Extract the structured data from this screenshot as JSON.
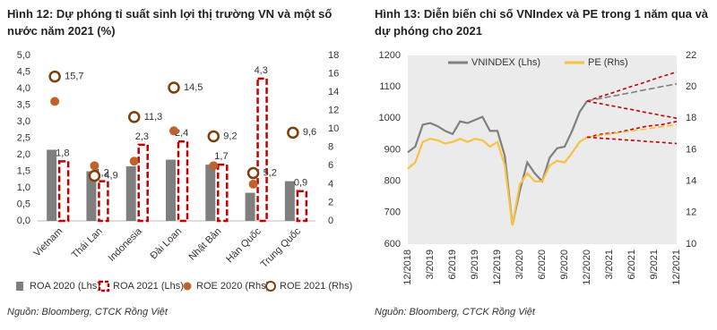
{
  "chart_data": [
    {
      "type": "combo",
      "title": "Hình 12: Dự phóng tỉ suất sinh lợi thị trường VN và một số nước năm 2021 (%)",
      "source": "Nguồn: Bloomberg, CTCK Rồng Việt",
      "categories": [
        "Vietnam",
        "Thái Lan",
        "Indonesia",
        "Đài Loan",
        "Nhật Bản",
        "Hàn Quốc",
        "Trung Quốc"
      ],
      "ylim": [
        0,
        5
      ],
      "y2lim": [
        0,
        18
      ],
      "yticks": [
        {
          "value": 0,
          "label": "0,0"
        },
        {
          "value": 0.5,
          "label": "0,5"
        },
        {
          "value": 1,
          "label": "1,0"
        },
        {
          "value": 1.5,
          "label": "1,5"
        },
        {
          "value": 2,
          "label": "2,0"
        },
        {
          "value": 2.5,
          "label": "2,5"
        },
        {
          "value": 3,
          "label": "3,0"
        },
        {
          "value": 3.5,
          "label": "3,5"
        },
        {
          "value": 4,
          "label": "4,0"
        },
        {
          "value": 4.5,
          "label": "4,5"
        },
        {
          "value": 5,
          "label": "5,0"
        }
      ],
      "y2ticks": [
        0,
        2,
        4,
        6,
        8,
        10,
        12,
        14,
        16,
        18
      ],
      "series": [
        {
          "name": "ROA 2020 (Lhs)",
          "kind": "bar",
          "color": "#7f7f7f",
          "values": [
            2.15,
            1.5,
            1.65,
            1.85,
            1.7,
            0.85,
            1.2
          ]
        },
        {
          "name": "ROA 2021 (Lhs)",
          "kind": "bar-dashed",
          "color": "#c00000",
          "values": [
            1.8,
            1.2,
            2.3,
            2.4,
            1.7,
            4.3,
            0.9
          ],
          "value_labels": [
            "1,8",
            "1,2",
            "2,3",
            "2,4",
            "1,7",
            "4,3",
            "0,9"
          ]
        },
        {
          "name": "ROE 2020 (Rhs)",
          "kind": "dot",
          "axis": "y2",
          "color": "#c0622b",
          "values": [
            13,
            6,
            6.5,
            9.8,
            6,
            4,
            9.5
          ]
        },
        {
          "name": "ROE 2021 (Rhs)",
          "kind": "ring",
          "axis": "y2",
          "color": "#7b3f0a",
          "values": [
            15.7,
            4.9,
            11.3,
            14.5,
            9.2,
            5.2,
            9.6
          ],
          "value_labels": [
            "15,7",
            "4,9",
            "11,3",
            "14,5",
            "9,2",
            "5,2",
            "9,6"
          ]
        }
      ]
    },
    {
      "type": "line",
      "title": "Hình 13: Diễn biến chỉ số VNIndex và PE trong 1 năm qua và dự phóng cho 2021",
      "source": "Nguồn: Bloomberg, CTCK Rồng Việt",
      "categories": [
        "12/2018",
        null,
        null,
        "3/2019",
        null,
        null,
        "6/2019",
        null,
        null,
        "9/2019",
        null,
        null,
        "12/2019",
        null,
        null,
        "3/2020",
        null,
        null,
        "6/2020",
        null,
        null,
        "9/2020",
        null,
        null,
        "12/2020",
        null,
        null,
        "3/2021",
        null,
        null,
        "6/2021",
        null,
        null,
        "9/2021",
        null,
        null,
        "12/2021"
      ],
      "ylim": [
        600,
        1200
      ],
      "y2lim": [
        10,
        22
      ],
      "yticks": [
        600,
        700,
        800,
        900,
        1000,
        1100,
        1200
      ],
      "y2ticks": [
        10,
        12,
        14,
        16,
        18,
        20,
        22
      ],
      "series": [
        {
          "name": "VNINDEX (Lhs)",
          "color": "#808080",
          "values": [
            892,
            910,
            980,
            985,
            975,
            960,
            950,
            990,
            985,
            995,
            1005,
            960,
            960,
            880,
            660,
            770,
            860,
            825,
            800,
            875,
            905,
            910,
            960,
            1020,
            1055,
            null,
            null,
            null,
            null,
            null,
            null,
            null,
            null,
            null,
            null,
            null,
            null
          ]
        },
        {
          "name": "PE (Rhs)",
          "axis": "y2",
          "color": "#f5c242",
          "values": [
            14.8,
            15.2,
            16.5,
            16.7,
            16.6,
            16.4,
            16.5,
            16.7,
            16.5,
            16.7,
            16.6,
            16.2,
            16.5,
            15.0,
            11.2,
            13.8,
            14.5,
            14.0,
            14.0,
            15.0,
            15.3,
            15.2,
            15.8,
            16.5,
            16.8,
            null,
            null,
            null,
            null,
            null,
            null,
            null,
            null,
            null,
            null,
            null,
            null
          ]
        },
        {
          "color": "#c00000",
          "dash": true,
          "values": [
            null,
            null,
            null,
            null,
            null,
            null,
            null,
            null,
            null,
            null,
            null,
            null,
            null,
            null,
            null,
            null,
            null,
            null,
            null,
            null,
            null,
            null,
            null,
            null,
            1055,
            1063,
            1071,
            1078,
            1086,
            1094,
            1102,
            1109,
            1117,
            1125,
            1133,
            1140,
            1148
          ]
        },
        {
          "color": "#808080",
          "dash": true,
          "values": [
            null,
            null,
            null,
            null,
            null,
            null,
            null,
            null,
            null,
            null,
            null,
            null,
            null,
            null,
            null,
            null,
            null,
            null,
            null,
            null,
            null,
            null,
            null,
            null,
            1055,
            1060,
            1064,
            1069,
            1073,
            1078,
            1082,
            1087,
            1092,
            1096,
            1101,
            1105,
            1110
          ]
        },
        {
          "color": "#c00000",
          "dash": true,
          "values": [
            null,
            null,
            null,
            null,
            null,
            null,
            null,
            null,
            null,
            null,
            null,
            null,
            null,
            null,
            null,
            null,
            null,
            null,
            null,
            null,
            null,
            null,
            null,
            null,
            1055,
            1050,
            1046,
            1041,
            1037,
            1032,
            1028,
            1023,
            1018,
            1014,
            1009,
            1005,
            1000
          ]
        },
        {
          "color": "#c00000",
          "dash": true,
          "axis": "y2",
          "values": [
            null,
            null,
            null,
            null,
            null,
            null,
            null,
            null,
            null,
            null,
            null,
            null,
            null,
            null,
            null,
            null,
            null,
            null,
            null,
            null,
            null,
            null,
            null,
            null,
            16.8,
            16.9,
            17.0,
            17.05,
            17.1,
            17.2,
            17.3,
            17.4,
            17.5,
            17.55,
            17.6,
            17.7,
            17.8
          ]
        },
        {
          "color": "#f5c242",
          "dash": true,
          "axis": "y2",
          "values": [
            null,
            null,
            null,
            null,
            null,
            null,
            null,
            null,
            null,
            null,
            null,
            null,
            null,
            null,
            null,
            null,
            null,
            null,
            null,
            null,
            null,
            null,
            null,
            null,
            16.8,
            16.87,
            16.93,
            17.0,
            17.07,
            17.13,
            17.2,
            17.27,
            17.33,
            17.4,
            17.47,
            17.53,
            17.6
          ]
        },
        {
          "color": "#c00000",
          "dash": true,
          "axis": "y2",
          "values": [
            null,
            null,
            null,
            null,
            null,
            null,
            null,
            null,
            null,
            null,
            null,
            null,
            null,
            null,
            null,
            null,
            null,
            null,
            null,
            null,
            null,
            null,
            null,
            null,
            16.8,
            16.77,
            16.73,
            16.7,
            16.67,
            16.63,
            16.6,
            16.57,
            16.53,
            16.5,
            16.47,
            16.43,
            16.4
          ]
        }
      ]
    }
  ]
}
